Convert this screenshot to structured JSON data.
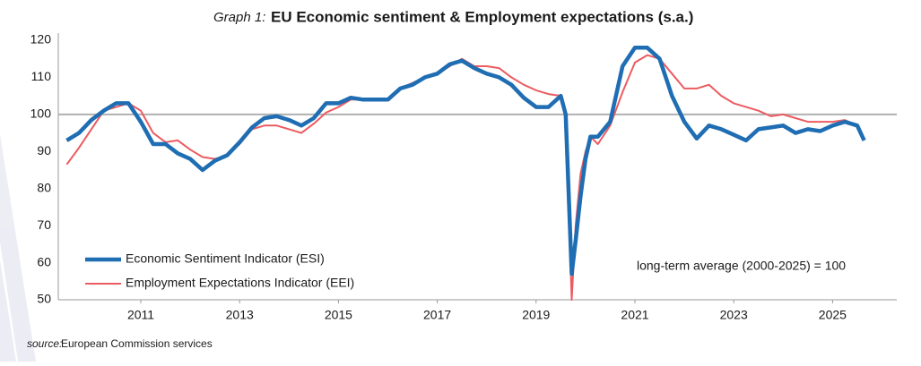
{
  "chart_data": {
    "type": "line",
    "title_prefix": "Graph 1:",
    "title": "EU Economic sentiment & Employment expectations (s.a.)",
    "annotation": "long-term average (2000-2025) = 100",
    "source_prefix": "source:",
    "source": "European Commission services",
    "reference_line": 100,
    "x": [
      2009.5,
      2009.75,
      2010,
      2010.25,
      2010.5,
      2010.75,
      2011,
      2011.25,
      2011.5,
      2011.75,
      2012,
      2012.25,
      2012.5,
      2012.75,
      2013,
      2013.25,
      2013.5,
      2013.75,
      2014,
      2014.25,
      2014.5,
      2014.75,
      2015,
      2015.25,
      2015.5,
      2015.75,
      2016,
      2016.25,
      2016.5,
      2016.75,
      2017,
      2017.25,
      2017.5,
      2017.75,
      2018,
      2018.25,
      2018.5,
      2018.75,
      2019,
      2019.25,
      2019.5,
      2019.6,
      2019.72,
      2019.8,
      2019.9,
      2020,
      2020.1,
      2020.25,
      2020.5,
      2020.75,
      2021,
      2021.25,
      2021.5,
      2021.75,
      2022,
      2022.25,
      2022.5,
      2022.75,
      2023,
      2023.25,
      2023.5,
      2023.75,
      2024,
      2024.25,
      2024.5,
      2024.75,
      2025,
      2025.25,
      2025.5,
      2025.64
    ],
    "series": [
      {
        "name": "Economic Sentiment Indicator (ESI)",
        "color": "#1f6db3",
        "width": 4.5,
        "values": [
          93,
          95,
          98.5,
          101,
          103,
          103,
          98,
          92,
          92,
          89.5,
          88,
          85,
          87.5,
          89,
          92.5,
          96.5,
          99,
          99.5,
          98.5,
          97,
          99,
          103,
          103,
          104.5,
          104,
          104,
          104,
          107,
          108,
          110,
          111,
          113.5,
          114.5,
          112.5,
          111,
          110,
          108,
          104.5,
          102,
          102,
          105,
          100,
          57,
          66,
          78,
          88,
          94,
          94,
          98,
          113,
          118,
          118,
          115,
          105,
          98,
          93.5,
          97,
          96,
          94.5,
          93,
          96,
          96.5,
          97,
          95,
          96,
          95.5,
          97,
          98,
          97,
          93
        ]
      },
      {
        "name": "Employment Expectations Indicator (EEI)",
        "color": "#ec5b60",
        "width": 2,
        "values": [
          86.5,
          91,
          96,
          101,
          102,
          103,
          101,
          95,
          92.5,
          93,
          90.5,
          88.5,
          88,
          89,
          92,
          96,
          97,
          97,
          96,
          95,
          97.5,
          100.5,
          102,
          104,
          104,
          104,
          104,
          107,
          108.5,
          110,
          111,
          113,
          115,
          113,
          113,
          112.5,
          110,
          108,
          106.5,
          105.5,
          105,
          100,
          50,
          70,
          84,
          90,
          94,
          92,
          97,
          106,
          114,
          116,
          115,
          111,
          107,
          107,
          108,
          105,
          103,
          102,
          101,
          99.5,
          100,
          99,
          98,
          98,
          98,
          98.5,
          97,
          93.5
        ]
      }
    ],
    "xlim": [
      2009.33,
      2026.3
    ],
    "xticks": [
      2011,
      2013,
      2015,
      2017,
      2019,
      2021,
      2023,
      2025
    ],
    "ylim": [
      50,
      120
    ],
    "yticks": [
      50,
      60,
      70,
      80,
      90,
      100,
      110,
      120
    ]
  }
}
